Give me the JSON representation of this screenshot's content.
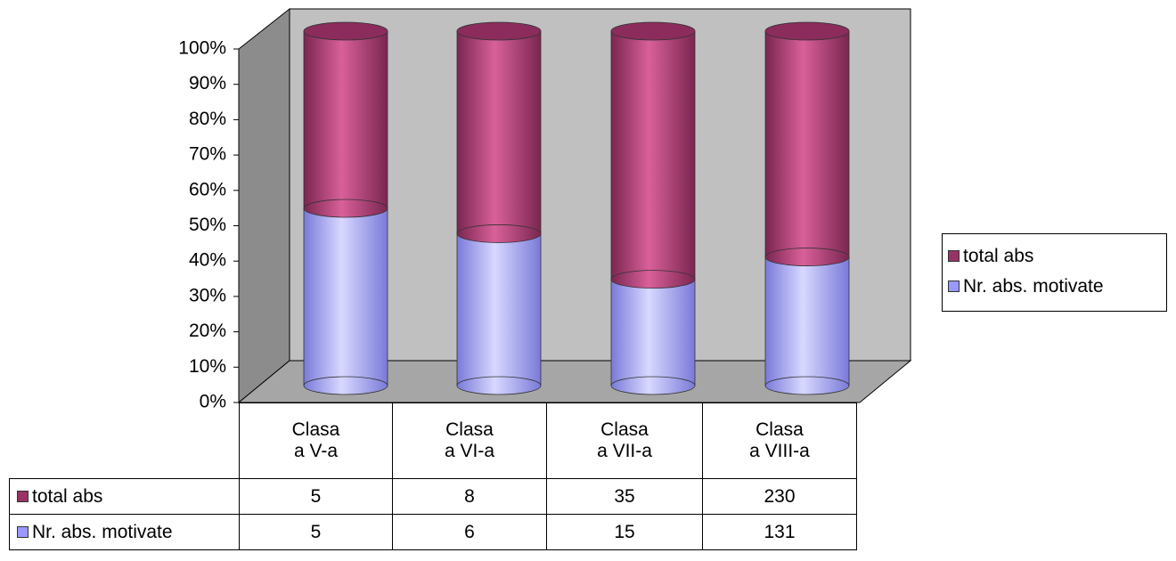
{
  "chart_data": {
    "type": "bar",
    "stacking": "percent",
    "categories": [
      "Clasa\na V-a",
      "Clasa\na VI-a",
      "Clasa\na VII-a",
      "Clasa\na VIII-a"
    ],
    "series": [
      {
        "name": "Nr. abs. motivate",
        "color": "#9999ff",
        "values": [
          5,
          6,
          15,
          131
        ]
      },
      {
        "name": "total abs",
        "color": "#993366",
        "values": [
          5,
          8,
          35,
          230
        ]
      }
    ],
    "ylim": [
      0,
      100
    ],
    "yticks": [
      {
        "value": 0,
        "label": "0%"
      },
      {
        "value": 10,
        "label": "10%"
      },
      {
        "value": 20,
        "label": "20%"
      },
      {
        "value": 30,
        "label": "30%"
      },
      {
        "value": 40,
        "label": "40%"
      },
      {
        "value": 50,
        "label": "50%"
      },
      {
        "value": 60,
        "label": "60%"
      },
      {
        "value": 70,
        "label": "70%"
      },
      {
        "value": 80,
        "label": "80%"
      },
      {
        "value": 90,
        "label": "90%"
      },
      {
        "value": 100,
        "label": "100%"
      }
    ],
    "legend": "right"
  }
}
